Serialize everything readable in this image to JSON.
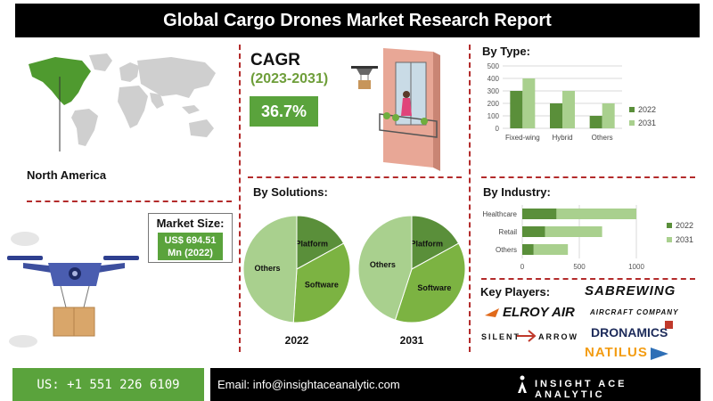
{
  "header": {
    "title": "Global Cargo Drones Market Research Report"
  },
  "region": {
    "label": "North America"
  },
  "market_size": {
    "title": "Market Size:",
    "value_line1": "US$ 694.51",
    "value_line2": "Mn (2022)"
  },
  "cagr": {
    "title": "CAGR",
    "period": "(2023-2031)",
    "value": "36.7%"
  },
  "sections": {
    "by_type": "By Type:",
    "by_solutions": "By Solutions:",
    "by_industry": "By  Industry:",
    "key_players": "Key Players:"
  },
  "pie_years": [
    "2022",
    "2031"
  ],
  "key_players": [
    "SABREWING",
    "AIRCRAFT COMPANY",
    "ELROY AIR",
    "SILENT",
    "ARROW",
    "DRONAMICS",
    "NATILUS"
  ],
  "footer": {
    "phone": "US: +1 551 226 6109",
    "email": "Email: info@insightaceanalytic.com",
    "brand": "INSIGHT ACE ANALYTIC"
  },
  "colors": {
    "dark_green": "#5a8f3a",
    "light_green": "#a9d08e",
    "accent_green": "#5aa33c",
    "divider": "#b32b2b"
  },
  "chart_data": [
    {
      "type": "bar",
      "title": "By Type:",
      "categories": [
        "Fixed-wing",
        "Hybrid",
        "Others"
      ],
      "series": [
        {
          "name": "2022",
          "values": [
            300,
            200,
            100
          ]
        },
        {
          "name": "2031",
          "values": [
            400,
            300,
            200
          ]
        }
      ],
      "ylim": [
        0,
        500
      ],
      "yticks": [
        0,
        100,
        200,
        300,
        400,
        500
      ],
      "legend": "right",
      "grid": true
    },
    {
      "type": "pie",
      "title": "By Solutions:",
      "subtitle": "2022",
      "labels": [
        "Platform",
        "Software",
        "Others"
      ],
      "values": [
        17,
        34,
        49
      ]
    },
    {
      "type": "pie",
      "title": "By Solutions:",
      "subtitle": "2031",
      "labels": [
        "Platform",
        "Software",
        "Others"
      ],
      "values": [
        17,
        38,
        45
      ]
    },
    {
      "type": "bar",
      "orientation": "horizontal",
      "title": "By  Industry:",
      "categories": [
        "Healthcare",
        "Retail",
        "Others"
      ],
      "series": [
        {
          "name": "2022",
          "values": [
            300,
            200,
            100
          ]
        },
        {
          "name": "2031",
          "values": [
            700,
            500,
            300
          ]
        }
      ],
      "xlim": [
        0,
        1000
      ],
      "xticks": [
        0,
        500,
        1000
      ],
      "stacked": true,
      "legend": "right",
      "grid": true
    }
  ]
}
